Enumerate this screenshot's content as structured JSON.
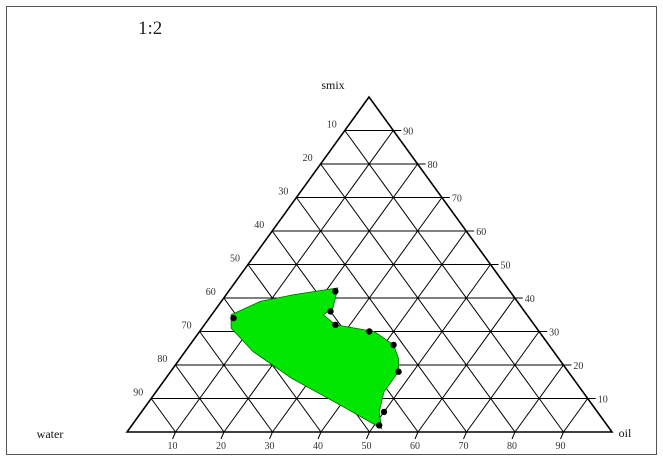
{
  "title": "1:2",
  "chart_data": {
    "type": "ternary",
    "vertices": {
      "top": "smix",
      "left": "water",
      "right": "oil"
    },
    "ticks": {
      "left_edge": [
        "10",
        "20",
        "30",
        "40",
        "50",
        "60",
        "70",
        "80",
        "90"
      ],
      "right_edge": [
        "90",
        "80",
        "70",
        "60",
        "50",
        "40",
        "30",
        "20",
        "10"
      ],
      "bottom_edge": [
        "10",
        "20",
        "30",
        "40",
        "50",
        "60",
        "70",
        "80",
        "90"
      ]
    },
    "grid_step": 10,
    "region_color": "#00e600",
    "region_border": "#006600",
    "points": [
      {
        "oil": 22,
        "smix": 42
      },
      {
        "oil": 24,
        "smix": 36
      },
      {
        "oil": 27,
        "smix": 32
      },
      {
        "oil": 35,
        "smix": 30
      },
      {
        "oil": 42,
        "smix": 26
      },
      {
        "oil": 47,
        "smix": 18
      },
      {
        "oil": 50,
        "smix": 6
      },
      {
        "oil": 51,
        "smix": 2
      },
      {
        "oil": 5,
        "smix": 34
      }
    ],
    "region_outline": [
      {
        "oil": 22,
        "smix": 43
      },
      {
        "oil": 14,
        "smix": 41
      },
      {
        "oil": 8,
        "smix": 39
      },
      {
        "oil": 4,
        "smix": 35
      },
      {
        "oil": 6,
        "smix": 31
      },
      {
        "oil": 14,
        "smix": 24
      },
      {
        "oil": 26,
        "smix": 16
      },
      {
        "oil": 40,
        "smix": 8
      },
      {
        "oil": 52,
        "smix": 1
      },
      {
        "oil": 49,
        "smix": 6
      },
      {
        "oil": 47,
        "smix": 12
      },
      {
        "oil": 47,
        "smix": 18
      },
      {
        "oil": 45,
        "smix": 22
      },
      {
        "oil": 42,
        "smix": 26
      },
      {
        "oil": 36,
        "smix": 30
      },
      {
        "oil": 27,
        "smix": 32
      },
      {
        "oil": 23,
        "smix": 35
      },
      {
        "oil": 24,
        "smix": 37
      },
      {
        "oil": 23,
        "smix": 40
      }
    ]
  }
}
